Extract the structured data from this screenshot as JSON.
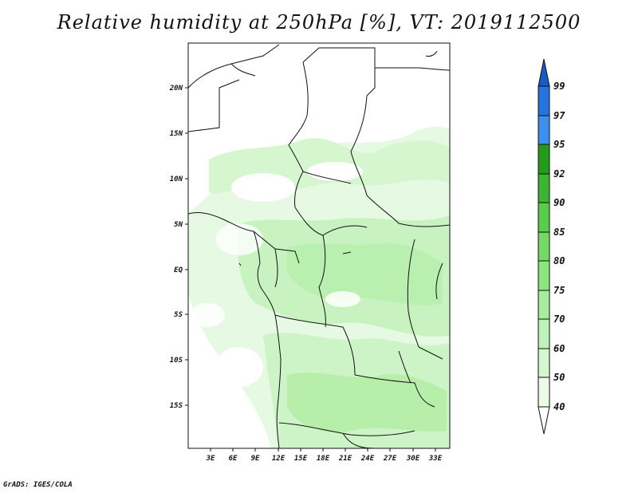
{
  "title": "Relative humidity at 250hPa [%], VT: 2019112500",
  "credit": "GrADS: IGES/COLA",
  "map": {
    "lat_ticks": [
      "20N",
      "15N",
      "10N",
      "5N",
      "EQ",
      "5S",
      "10S",
      "15S"
    ],
    "lon_ticks": [
      "3E",
      "6E",
      "9E",
      "12E",
      "15E",
      "18E",
      "21E",
      "24E",
      "27E",
      "30E",
      "33E"
    ],
    "field": "relative humidity",
    "level": "250hPa",
    "units": "%",
    "valid_time": "2019112500"
  },
  "colorbar": {
    "levels": [
      "40",
      "50",
      "60",
      "70",
      "75",
      "80",
      "85",
      "90",
      "92",
      "95",
      "97",
      "99"
    ],
    "colors": [
      "#ebfbe8",
      "#d4f7cf",
      "#bff2b9",
      "#a8ec9e",
      "#8fe482",
      "#73da66",
      "#58cd4c",
      "#3db432",
      "#229b1b",
      "#3c8fea",
      "#2673dd",
      "#175cc6"
    ]
  }
}
